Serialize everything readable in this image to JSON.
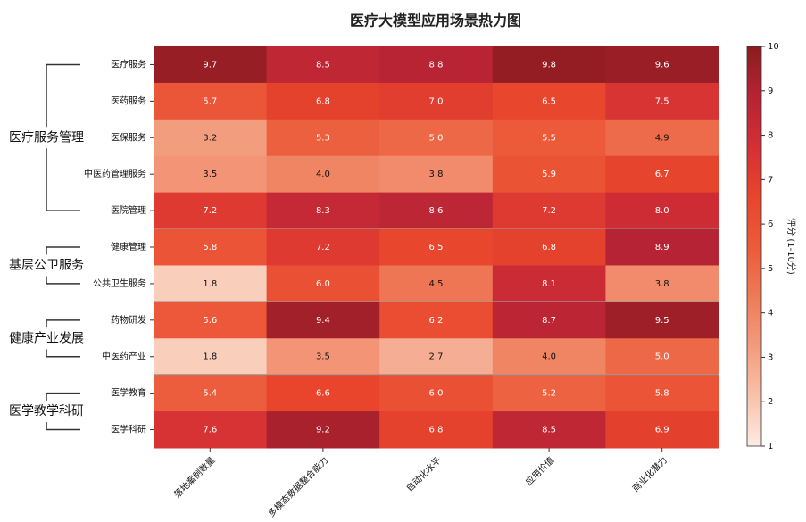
{
  "chart_data": {
    "type": "heatmap",
    "title": "医疗大模型应用场景热力图",
    "columns": [
      "落地案例数量",
      "多模态数据整合能力",
      "自动化水平",
      "应用价值",
      "商业化潜力"
    ],
    "groups": [
      {
        "name": "医疗服务管理",
        "rows": [
          {
            "name": "医疗服务",
            "values": [
              9.7,
              8.5,
              8.8,
              9.8,
              9.6
            ],
            "value_labels": [
              "9.7",
              "8.5",
              "8.8",
              "9.8",
              "9.6"
            ]
          },
          {
            "name": "医药服务",
            "values": [
              5.7,
              6.8,
              7.0,
              6.5,
              7.5
            ],
            "value_labels": [
              "5.7",
              "6.8",
              "7.0",
              "6.5",
              "7.5"
            ]
          },
          {
            "name": "医保服务",
            "values": [
              3.2,
              5.3,
              5.0,
              5.5,
              4.9
            ],
            "value_labels": [
              "3.2",
              "5.3",
              "5.0",
              "5.5",
              "4.9"
            ]
          },
          {
            "name": "中医药管理服务",
            "values": [
              3.5,
              4.0,
              3.8,
              5.9,
              6.7
            ],
            "value_labels": [
              "3.5",
              "4.0",
              "3.8",
              "5.9",
              "6.7"
            ]
          },
          {
            "name": "医院管理",
            "values": [
              7.2,
              8.3,
              8.6,
              7.2,
              8.0
            ],
            "value_labels": [
              "7.2",
              "8.3",
              "8.6",
              "7.2",
              "8.0"
            ]
          }
        ]
      },
      {
        "name": "基层公卫服务",
        "rows": [
          {
            "name": "健康管理",
            "values": [
              5.8,
              7.2,
              6.5,
              6.8,
              8.9
            ],
            "value_labels": [
              "5.8",
              "7.2",
              "6.5",
              "6.8",
              "8.9"
            ]
          },
          {
            "name": "公共卫生服务",
            "values": [
              1.8,
              6.0,
              4.5,
              8.1,
              3.8
            ],
            "value_labels": [
              "1.8",
              "6.0",
              "4.5",
              "8.1",
              "3.8"
            ]
          }
        ]
      },
      {
        "name": "健康产业发展",
        "rows": [
          {
            "name": "药物研发",
            "values": [
              5.6,
              9.4,
              6.2,
              8.7,
              9.5
            ],
            "value_labels": [
              "5.6",
              "9.4",
              "6.2",
              "8.7",
              "9.5"
            ]
          },
          {
            "name": "中医药产业",
            "values": [
              1.8,
              3.5,
              2.7,
              4.0,
              5.0
            ],
            "value_labels": [
              "1.8",
              "3.5",
              "2.7",
              "4.0",
              "5.0"
            ]
          }
        ]
      },
      {
        "name": "医学教学科研",
        "rows": [
          {
            "name": "医学教育",
            "values": [
              5.4,
              6.6,
              6.0,
              5.2,
              5.8
            ],
            "value_labels": [
              "5.4",
              "6.6",
              "6.0",
              "5.2",
              "5.8"
            ]
          },
          {
            "name": "医学科研",
            "values": [
              7.6,
              9.2,
              6.8,
              8.5,
              6.9
            ],
            "value_labels": [
              "7.6",
              "9.2",
              "6.8",
              "8.5",
              "6.9"
            ]
          }
        ]
      }
    ],
    "colorbar_label": "评分 (1-10分)",
    "clim": [
      1,
      10
    ],
    "cticks": [
      1,
      2,
      3,
      4,
      5,
      6,
      7,
      8,
      9,
      10
    ],
    "colors": [
      "#fdebe4",
      "#f8c2aa",
      "#f39b7d",
      "#ee7a58",
      "#ec5a3a",
      "#e8452c",
      "#d42f35",
      "#b62334",
      "#8b1c1e"
    ]
  }
}
